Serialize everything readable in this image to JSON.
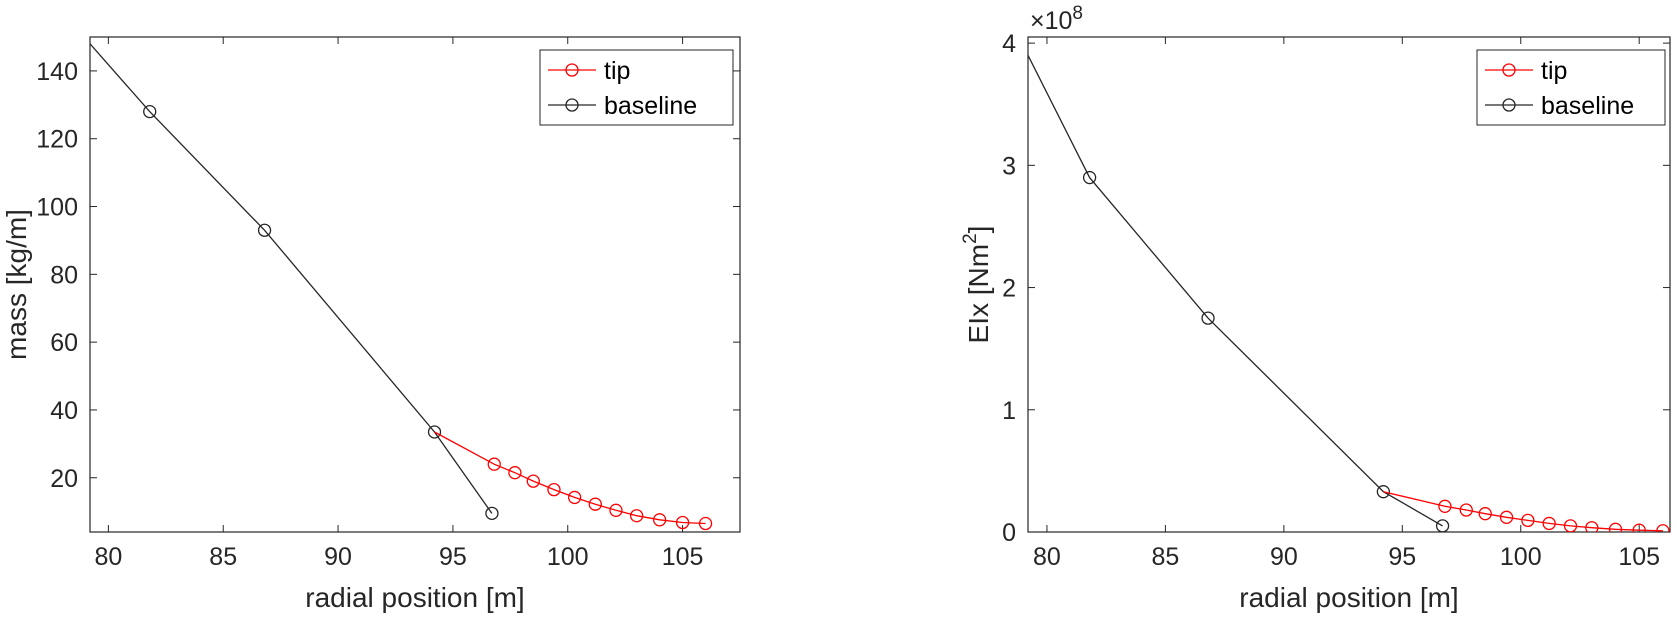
{
  "chart_data": [
    {
      "type": "line",
      "xlabel": "radial position [m]",
      "ylabel": "mass [kg/m]",
      "xlim": [
        79.2,
        107.5
      ],
      "ylim": [
        4,
        150
      ],
      "xticks": [
        80,
        85,
        90,
        95,
        100,
        105
      ],
      "yticks": [
        20,
        40,
        60,
        80,
        100,
        120,
        140
      ],
      "grid": false,
      "legend_position": "top-right",
      "series": [
        {
          "name": "tip",
          "color": "#ff0000",
          "marker": "circle",
          "x": [
            94.2,
            96.8,
            97.7,
            98.5,
            99.4,
            100.3,
            101.2,
            102.1,
            103.0,
            104.0,
            105.0,
            106.0
          ],
          "y": [
            33.5,
            24.0,
            21.5,
            19.0,
            16.5,
            14.2,
            12.2,
            10.4,
            8.8,
            7.6,
            6.8,
            6.5
          ],
          "markers": [
            false,
            true,
            true,
            true,
            true,
            true,
            true,
            true,
            true,
            true,
            true,
            true
          ]
        },
        {
          "name": "baseline",
          "color": "#262626",
          "marker": "circle",
          "x": [
            79.2,
            81.8,
            86.8,
            94.2,
            96.7
          ],
          "y": [
            148.0,
            128.0,
            93.0,
            33.5,
            9.5
          ],
          "markers": [
            false,
            true,
            true,
            true,
            true
          ]
        }
      ]
    },
    {
      "type": "line",
      "xlabel": "radial position [m]",
      "ylabel": "EIx [Nm",
      "ylabel_sup": "2",
      "ylabel_end": "]",
      "exponent_prefix": "×10",
      "exponent_power": "8",
      "xlim": [
        79.2,
        106.3
      ],
      "ylim": [
        0,
        4.05
      ],
      "xticks": [
        80,
        85,
        90,
        95,
        100,
        105
      ],
      "yticks": [
        0,
        1,
        2,
        3,
        4
      ],
      "grid": false,
      "legend_position": "top-right",
      "series": [
        {
          "name": "tip",
          "color": "#ff0000",
          "marker": "circle",
          "x": [
            94.2,
            96.8,
            97.7,
            98.5,
            99.4,
            100.3,
            101.2,
            102.1,
            103.0,
            104.0,
            105.0,
            106.0
          ],
          "y": [
            0.33,
            0.21,
            0.18,
            0.15,
            0.12,
            0.095,
            0.07,
            0.05,
            0.035,
            0.022,
            0.015,
            0.01
          ],
          "markers": [
            false,
            true,
            true,
            true,
            true,
            true,
            true,
            true,
            true,
            true,
            true,
            true
          ]
        },
        {
          "name": "baseline",
          "color": "#262626",
          "marker": "circle",
          "x": [
            79.2,
            81.8,
            86.8,
            94.2,
            96.7
          ],
          "y": [
            3.9,
            2.9,
            1.75,
            0.33,
            0.05
          ],
          "markers": [
            false,
            true,
            true,
            true,
            true
          ]
        }
      ]
    }
  ]
}
